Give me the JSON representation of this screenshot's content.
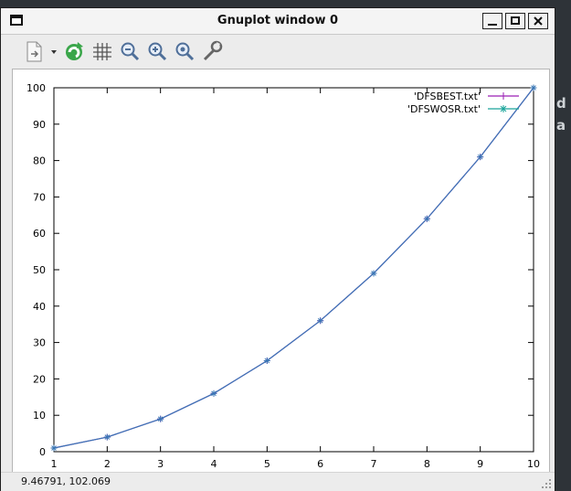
{
  "window": {
    "title": "Gnuplot window 0"
  },
  "toolbar": {
    "items": [
      {
        "name": "export-icon"
      },
      {
        "name": "replot-icon"
      },
      {
        "name": "grid-icon"
      },
      {
        "name": "zoom-out-icon"
      },
      {
        "name": "zoom-in-icon"
      },
      {
        "name": "zoom-reset-icon"
      },
      {
        "name": "options-icon"
      }
    ]
  },
  "status": {
    "coords": "9.46791,  102.069"
  },
  "colors": {
    "series1": "#9a1fb4",
    "series2": "#1aa59a",
    "curve": "#3a77b5"
  },
  "chart_data": {
    "type": "line",
    "title": "",
    "xlabel": "",
    "ylabel": "",
    "xlim": [
      1,
      10
    ],
    "ylim": [
      0,
      100
    ],
    "xticks": [
      "1",
      "2",
      "3",
      "4",
      "5",
      "6",
      "7",
      "8",
      "9",
      "10"
    ],
    "yticks": [
      "0",
      "10",
      "20",
      "30",
      "40",
      "50",
      "60",
      "70",
      "80",
      "90",
      "100"
    ],
    "grid": false,
    "legend_position": "top-right",
    "series": [
      {
        "name": "'DFSBEST.txt'",
        "marker": "plus",
        "x": [
          1,
          2,
          3,
          4,
          5,
          6,
          7,
          8,
          9,
          10
        ],
        "y": [
          1,
          4,
          9,
          16,
          25,
          36,
          49,
          64,
          81,
          100
        ]
      },
      {
        "name": "'DFSWOSR.txt'",
        "marker": "star",
        "x": [
          1,
          2,
          3,
          4,
          5,
          6,
          7,
          8,
          9,
          10
        ],
        "y": [
          1,
          4,
          9,
          16,
          25,
          36,
          49,
          64,
          81,
          100
        ]
      }
    ]
  }
}
